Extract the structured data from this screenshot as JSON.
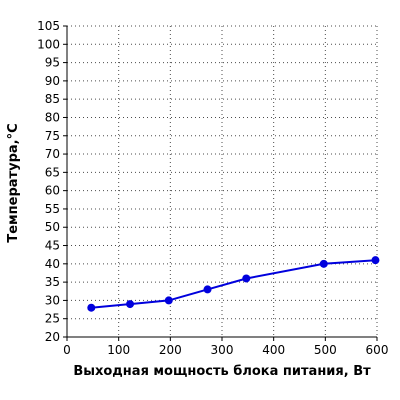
{
  "chart_data": {
    "type": "line",
    "xlabel": "Выходная мощность блока питания, Вт",
    "ylabel": "Температура,°C",
    "xlim": [
      0,
      600
    ],
    "ylim": [
      20,
      105
    ],
    "x_ticks": [
      0,
      100,
      200,
      300,
      400,
      500,
      600
    ],
    "y_ticks": [
      20,
      25,
      30,
      35,
      40,
      45,
      50,
      55,
      60,
      65,
      70,
      75,
      80,
      85,
      90,
      95,
      100,
      105
    ],
    "grid": true,
    "legend": "none",
    "series": [
      {
        "color": "#0000dd",
        "marker": "circle",
        "x": [
          47,
          122,
          197,
          272,
          347,
          497,
          597
        ],
        "y": [
          28,
          29,
          30,
          33,
          36,
          40,
          41
        ]
      }
    ]
  }
}
